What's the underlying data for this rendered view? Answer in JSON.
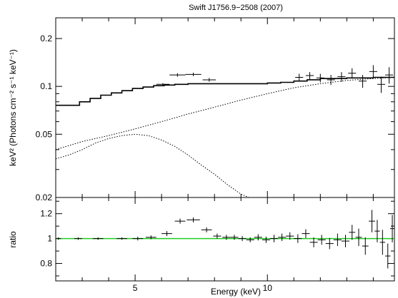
{
  "chart_data": {
    "type": "scatter",
    "title": "Swift J1756.9−2508  (2007)",
    "xlabel": "Energy (keV)",
    "xlim": [
      2.0,
      14.8
    ],
    "x_ticks": [
      5,
      10
    ],
    "x_tick_labels": [
      "5",
      "10"
    ],
    "colors": {
      "ratio_line": "#22cc22",
      "data": "#000000"
    },
    "panels": [
      {
        "name": "spectrum",
        "ylabel": "keV² (Photons cm⁻² s⁻¹ keV⁻¹)",
        "y_scale": "log",
        "ylim": [
          0.02,
          0.27
        ],
        "y_ticks": [
          0.02,
          0.05,
          0.1,
          0.2
        ],
        "y_tick_labels": [
          "0.02",
          "0.05",
          "0.1",
          "0.2"
        ],
        "data_points": [
          {
            "x": 6.05,
            "xerr": 0.25,
            "y": 0.103,
            "yerr": 0.002
          },
          {
            "x": 6.6,
            "xerr": 0.3,
            "y": 0.118,
            "yerr": 0.003
          },
          {
            "x": 7.2,
            "xerr": 0.3,
            "y": 0.119,
            "yerr": 0.003
          },
          {
            "x": 7.8,
            "xerr": 0.25,
            "y": 0.11,
            "yerr": 0.003
          },
          {
            "x": 11.2,
            "xerr": 0.15,
            "y": 0.114,
            "yerr": 0.006
          },
          {
            "x": 11.6,
            "xerr": 0.15,
            "y": 0.117,
            "yerr": 0.006
          },
          {
            "x": 12.0,
            "xerr": 0.15,
            "y": 0.113,
            "yerr": 0.007
          },
          {
            "x": 12.4,
            "xerr": 0.15,
            "y": 0.11,
            "yerr": 0.008
          },
          {
            "x": 12.8,
            "xerr": 0.15,
            "y": 0.115,
            "yerr": 0.008
          },
          {
            "x": 13.2,
            "xerr": 0.15,
            "y": 0.121,
            "yerr": 0.009
          },
          {
            "x": 13.6,
            "xerr": 0.15,
            "y": 0.108,
            "yerr": 0.01
          },
          {
            "x": 14.0,
            "xerr": 0.15,
            "y": 0.124,
            "yerr": 0.012
          },
          {
            "x": 14.3,
            "xerr": 0.15,
            "y": 0.103,
            "yerr": 0.012
          },
          {
            "x": 14.6,
            "xerr": 0.15,
            "y": 0.118,
            "yerr": 0.014
          }
        ],
        "model_total": {
          "x": [
            2.0,
            2.9,
            3.3,
            3.7,
            4.1,
            4.5,
            4.9,
            5.3,
            5.7,
            6.1,
            6.5,
            7.0,
            7.5,
            8.0,
            8.5,
            9.0,
            9.5,
            10.0,
            10.5,
            11.0,
            11.5,
            12.0,
            13.0,
            14.0,
            14.8
          ],
          "y": [
            0.076,
            0.08,
            0.084,
            0.088,
            0.091,
            0.094,
            0.097,
            0.099,
            0.101,
            0.102,
            0.103,
            0.104,
            0.104,
            0.104,
            0.104,
            0.104,
            0.104,
            0.105,
            0.106,
            0.108,
            0.11,
            0.112,
            0.113,
            0.114,
            0.115
          ]
        },
        "model_powerlaw": {
          "x": [
            2.0,
            3.0,
            4.0,
            5.0,
            6.0,
            7.0,
            8.0,
            9.0,
            10.0,
            11.0,
            12.0,
            13.0,
            14.0,
            14.8
          ],
          "y": [
            0.04,
            0.045,
            0.049,
            0.054,
            0.06,
            0.067,
            0.074,
            0.082,
            0.09,
            0.098,
            0.104,
            0.109,
            0.112,
            0.114
          ]
        },
        "model_disk": {
          "x": [
            2.0,
            2.5,
            3.0,
            3.5,
            4.0,
            4.5,
            5.0,
            5.5,
            6.0,
            6.5,
            7.0,
            7.5,
            8.0,
            8.5,
            9.0,
            9.3
          ],
          "y": [
            0.035,
            0.037,
            0.04,
            0.044,
            0.047,
            0.049,
            0.05,
            0.049,
            0.046,
            0.042,
            0.037,
            0.032,
            0.028,
            0.024,
            0.021,
            0.02
          ]
        }
      },
      {
        "name": "ratio",
        "ylabel": "ratio",
        "ylim": [
          0.66,
          1.33
        ],
        "y_ticks": [
          0.8,
          1.0,
          1.2
        ],
        "y_tick_labels": [
          "0.8",
          "1",
          "1.2"
        ],
        "reference_line": 1.0,
        "data_points": [
          {
            "x": 2.1,
            "xerr": 0.1,
            "y": 1.0,
            "yerr": 0.01
          },
          {
            "x": 2.85,
            "xerr": 0.15,
            "y": 1.0,
            "yerr": 0.01
          },
          {
            "x": 3.6,
            "xerr": 0.2,
            "y": 1.0,
            "yerr": 0.01
          },
          {
            "x": 4.5,
            "xerr": 0.2,
            "y": 1.0,
            "yerr": 0.01
          },
          {
            "x": 5.1,
            "xerr": 0.2,
            "y": 1.0,
            "yerr": 0.015
          },
          {
            "x": 5.6,
            "xerr": 0.2,
            "y": 1.01,
            "yerr": 0.015
          },
          {
            "x": 6.2,
            "xerr": 0.2,
            "y": 1.04,
            "yerr": 0.02
          },
          {
            "x": 6.7,
            "xerr": 0.2,
            "y": 1.14,
            "yerr": 0.02
          },
          {
            "x": 7.2,
            "xerr": 0.25,
            "y": 1.15,
            "yerr": 0.02
          },
          {
            "x": 7.7,
            "xerr": 0.2,
            "y": 1.07,
            "yerr": 0.02
          },
          {
            "x": 8.1,
            "xerr": 0.15,
            "y": 1.02,
            "yerr": 0.02
          },
          {
            "x": 8.45,
            "xerr": 0.15,
            "y": 1.01,
            "yerr": 0.02
          },
          {
            "x": 8.75,
            "xerr": 0.15,
            "y": 1.01,
            "yerr": 0.02
          },
          {
            "x": 9.05,
            "xerr": 0.15,
            "y": 1.0,
            "yerr": 0.02
          },
          {
            "x": 9.35,
            "xerr": 0.15,
            "y": 0.99,
            "yerr": 0.02
          },
          {
            "x": 9.65,
            "xerr": 0.15,
            "y": 1.01,
            "yerr": 0.025
          },
          {
            "x": 9.95,
            "xerr": 0.15,
            "y": 0.99,
            "yerr": 0.025
          },
          {
            "x": 10.25,
            "xerr": 0.15,
            "y": 1.0,
            "yerr": 0.03
          },
          {
            "x": 10.55,
            "xerr": 0.15,
            "y": 1.01,
            "yerr": 0.03
          },
          {
            "x": 10.85,
            "xerr": 0.15,
            "y": 1.02,
            "yerr": 0.03
          },
          {
            "x": 11.15,
            "xerr": 0.15,
            "y": 1.0,
            "yerr": 0.035
          },
          {
            "x": 11.45,
            "xerr": 0.15,
            "y": 1.04,
            "yerr": 0.035
          },
          {
            "x": 11.75,
            "xerr": 0.15,
            "y": 0.97,
            "yerr": 0.04
          },
          {
            "x": 12.05,
            "xerr": 0.15,
            "y": 0.99,
            "yerr": 0.04
          },
          {
            "x": 12.35,
            "xerr": 0.15,
            "y": 0.96,
            "yerr": 0.045
          },
          {
            "x": 12.65,
            "xerr": 0.15,
            "y": 0.99,
            "yerr": 0.05
          },
          {
            "x": 12.95,
            "xerr": 0.15,
            "y": 0.98,
            "yerr": 0.05
          },
          {
            "x": 13.2,
            "xerr": 0.12,
            "y": 1.05,
            "yerr": 0.06
          },
          {
            "x": 13.45,
            "xerr": 0.12,
            "y": 1.01,
            "yerr": 0.07
          },
          {
            "x": 13.7,
            "xerr": 0.12,
            "y": 0.94,
            "yerr": 0.07
          },
          {
            "x": 13.95,
            "xerr": 0.12,
            "y": 1.14,
            "yerr": 0.09
          },
          {
            "x": 14.15,
            "xerr": 0.1,
            "y": 1.06,
            "yerr": 0.09
          },
          {
            "x": 14.35,
            "xerr": 0.1,
            "y": 0.97,
            "yerr": 0.1
          },
          {
            "x": 14.55,
            "xerr": 0.1,
            "y": 0.86,
            "yerr": 0.1
          },
          {
            "x": 14.72,
            "xerr": 0.08,
            "y": 1.08,
            "yerr": 0.11
          }
        ]
      }
    ]
  }
}
